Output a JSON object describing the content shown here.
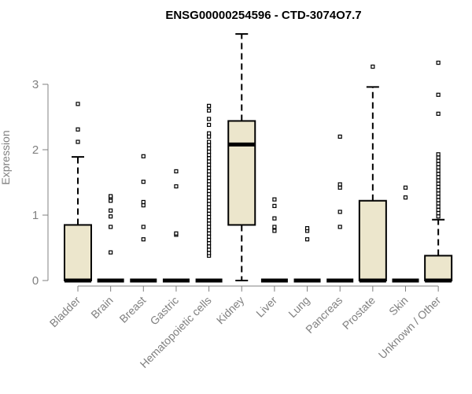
{
  "chart_data": {
    "type": "box",
    "title": "ENSG00000254596 - CTD-3074O7.7",
    "xlabel": "",
    "ylabel": "Expression",
    "ylim": [
      0,
      3.8
    ],
    "yticks": [
      0,
      1,
      2,
      3
    ],
    "grid": false,
    "box_fill": "#ece6cc",
    "outline_color": "#000000",
    "axis_color": "#808080",
    "categories": [
      "Bladder",
      "Brain",
      "Breast",
      "Gastric",
      "Hematopoietic cells",
      "Kidney",
      "Liver",
      "Lung",
      "Pancreas",
      "Prostate",
      "Skin",
      "Unknown / Other"
    ],
    "boxes": [
      {
        "q1": 0,
        "median": 0,
        "q3": 0.85,
        "whisker_low": 0,
        "whisker_high": 1.89,
        "outliers": [
          2.12,
          2.31,
          2.7
        ]
      },
      {
        "q1": 0,
        "median": 0,
        "q3": 0,
        "whisker_low": 0,
        "whisker_high": 0,
        "outliers": [
          0.43,
          0.82,
          0.98,
          1.07,
          1.22,
          1.27,
          1.29
        ]
      },
      {
        "q1": 0,
        "median": 0,
        "q3": 0,
        "whisker_low": 0,
        "whisker_high": 0,
        "outliers": [
          0.63,
          0.82,
          1.15,
          1.2,
          1.51,
          1.9
        ]
      },
      {
        "q1": 0,
        "median": 0,
        "q3": 0,
        "whisker_low": 0,
        "whisker_high": 0,
        "outliers": [
          0.7,
          0.72,
          1.44,
          1.67
        ]
      },
      {
        "q1": 0,
        "median": 0,
        "q3": 0,
        "whisker_low": 0,
        "whisker_high": 0,
        "outliers": [
          0.38,
          0.42,
          0.47,
          0.52,
          0.57,
          0.62,
          0.67,
          0.72,
          0.77,
          0.82,
          0.87,
          0.92,
          0.97,
          1.02,
          1.07,
          1.12,
          1.17,
          1.22,
          1.27,
          1.32,
          1.37,
          1.42,
          1.47,
          1.52,
          1.57,
          1.62,
          1.67,
          1.72,
          1.77,
          1.82,
          1.87,
          1.92,
          1.97,
          2.02,
          2.07,
          2.12,
          2.2,
          2.25,
          2.38,
          2.47,
          2.6,
          2.67
        ]
      },
      {
        "q1": 0.85,
        "median": 2.08,
        "q3": 2.44,
        "whisker_low": 0,
        "whisker_high": 3.77,
        "outliers": []
      },
      {
        "q1": 0,
        "median": 0,
        "q3": 0,
        "whisker_low": 0,
        "whisker_high": 0,
        "outliers": [
          0.76,
          0.82,
          0.95,
          1.14,
          1.24
        ]
      },
      {
        "q1": 0,
        "median": 0,
        "q3": 0,
        "whisker_low": 0,
        "whisker_high": 0,
        "outliers": [
          0.63,
          0.76,
          0.8
        ]
      },
      {
        "q1": 0,
        "median": 0,
        "q3": 0,
        "whisker_low": 0,
        "whisker_high": 0,
        "outliers": [
          0.82,
          1.05,
          1.42,
          1.47,
          2.2
        ]
      },
      {
        "q1": 0,
        "median": 0,
        "q3": 1.22,
        "whisker_low": 0,
        "whisker_high": 2.96,
        "outliers": [
          3.27
        ]
      },
      {
        "q1": 0,
        "median": 0,
        "q3": 0,
        "whisker_low": 0,
        "whisker_high": 0,
        "outliers": [
          1.27,
          1.42
        ]
      },
      {
        "q1": 0,
        "median": 0,
        "q3": 0.38,
        "whisker_low": 0,
        "whisker_high": 0.93,
        "outliers": [
          0.98,
          1.03,
          1.08,
          1.13,
          1.18,
          1.23,
          1.28,
          1.33,
          1.38,
          1.43,
          1.48,
          1.53,
          1.58,
          1.63,
          1.68,
          1.73,
          1.78,
          1.83,
          1.88,
          1.93,
          2.55,
          2.84,
          3.33
        ]
      }
    ]
  }
}
